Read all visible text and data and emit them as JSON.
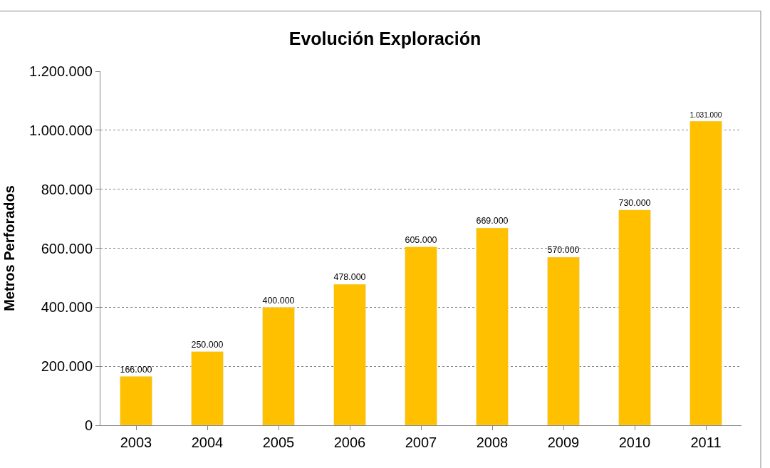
{
  "chart_data": {
    "type": "bar",
    "title": "Evolución Exploración",
    "ylabel": "Metros Perforados",
    "categories": [
      "2003",
      "2004",
      "2005",
      "2006",
      "2007",
      "2008",
      "2009",
      "2010",
      "2011"
    ],
    "values": [
      166000,
      250000,
      400000,
      478000,
      605000,
      669000,
      570000,
      730000,
      1031000
    ],
    "value_labels": [
      "166.000",
      "250.000",
      "400.000",
      "478.000",
      "605.000",
      "669.000",
      "570.000",
      "730.000",
      "1.031.000"
    ],
    "color": "#ffc000",
    "ylim": [
      0,
      1200000
    ],
    "yticks": [
      0,
      {
        "value": 200000,
        "label": "200.000"
      },
      {
        "value": 400000,
        "label": "400.000"
      },
      {
        "value": 600000,
        "label": "600.000"
      },
      {
        "value": 800000,
        "label": "800.000"
      },
      {
        "value": 1000000,
        "label": "1.000.000"
      },
      {
        "value": 1200000,
        "label": "1.200.000"
      }
    ],
    "grid": "y",
    "legend": false
  }
}
